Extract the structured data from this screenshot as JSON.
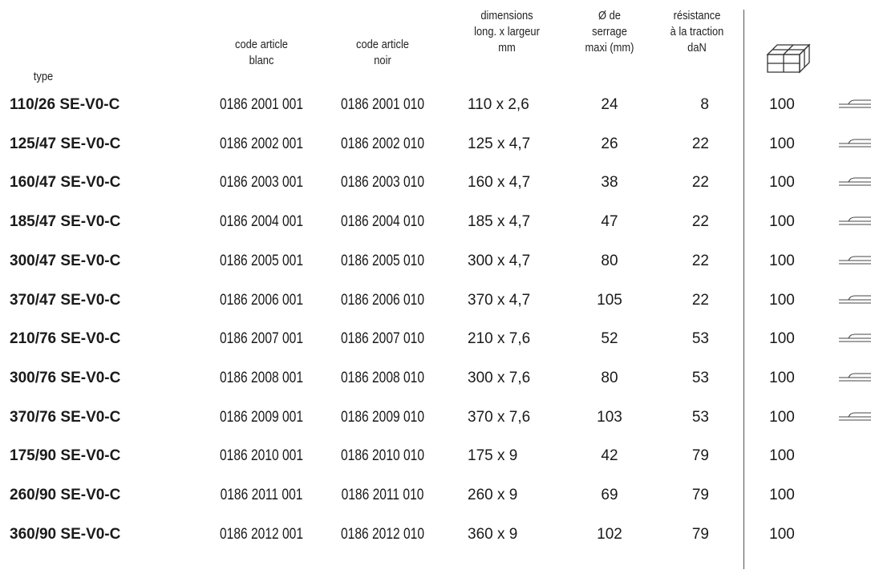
{
  "headers": {
    "type": [
      "type"
    ],
    "code_blanc": [
      "code article",
      "blanc"
    ],
    "code_noir": [
      "code article",
      "noir"
    ],
    "dimensions": [
      "dimensions",
      "long. x largeur",
      "mm"
    ],
    "serrage": [
      "Ø de",
      "serrage",
      "maxi (mm)"
    ],
    "traction": [
      "résistance",
      "à la traction",
      "daN"
    ],
    "packaging_icon": "box-stack-icon"
  },
  "rows": [
    {
      "type": "110/26 SE-V0-C",
      "blanc": "0186 2001 001",
      "noir": "0186 2001 010",
      "dim": "110 x 2,6",
      "serrage": "24",
      "traction": "8",
      "qty": "100",
      "tie_icon": true
    },
    {
      "type": "125/47 SE-V0-C",
      "blanc": "0186 2002 001",
      "noir": "0186 2002 010",
      "dim": "125 x 4,7",
      "serrage": "26",
      "traction": "22",
      "qty": "100",
      "tie_icon": true
    },
    {
      "type": "160/47 SE-V0-C",
      "blanc": "0186 2003 001",
      "noir": "0186 2003 010",
      "dim": "160 x 4,7",
      "serrage": "38",
      "traction": "22",
      "qty": "100",
      "tie_icon": true
    },
    {
      "type": "185/47 SE-V0-C",
      "blanc": "0186 2004 001",
      "noir": "0186 2004 010",
      "dim": "185 x 4,7",
      "serrage": "47",
      "traction": "22",
      "qty": "100",
      "tie_icon": true
    },
    {
      "type": "300/47 SE-V0-C",
      "blanc": "0186 2005 001",
      "noir": "0186 2005 010",
      "dim": "300 x 4,7",
      "serrage": "80",
      "traction": "22",
      "qty": "100",
      "tie_icon": true
    },
    {
      "type": "370/47 SE-V0-C",
      "blanc": "0186 2006 001",
      "noir": "0186 2006 010",
      "dim": "370 x 4,7",
      "serrage": "105",
      "traction": "22",
      "qty": "100",
      "tie_icon": true
    },
    {
      "type": "210/76 SE-V0-C",
      "blanc": "0186 2007 001",
      "noir": "0186 2007 010",
      "dim": "210 x 7,6",
      "serrage": "52",
      "traction": "53",
      "qty": "100",
      "tie_icon": true
    },
    {
      "type": "300/76 SE-V0-C",
      "blanc": "0186 2008 001",
      "noir": "0186 2008 010",
      "dim": "300 x 7,6",
      "serrage": "80",
      "traction": "53",
      "qty": "100",
      "tie_icon": true
    },
    {
      "type": "370/76 SE-V0-C",
      "blanc": "0186 2009 001",
      "noir": "0186 2009 010",
      "dim": "370 x 7,6",
      "serrage": "103",
      "traction": "53",
      "qty": "100",
      "tie_icon": true
    },
    {
      "type": "175/90 SE-V0-C",
      "blanc": "0186 2010 001",
      "noir": "0186 2010 010",
      "dim": "175 x 9",
      "serrage": "42",
      "traction": "79",
      "qty": "100",
      "tie_icon": false
    },
    {
      "type": "260/90 SE-V0-C",
      "blanc": "0186 2011 001",
      "noir": "0186 2011 010",
      "dim": "260 x 9",
      "serrage": "69",
      "traction": "79",
      "qty": "100",
      "tie_icon": false
    },
    {
      "type": "360/90 SE-V0-C",
      "blanc": "0186 2012 001",
      "noir": "0186 2012 010",
      "dim": "360 x 9",
      "serrage": "102",
      "traction": "79",
      "qty": "100",
      "tie_icon": false
    }
  ]
}
